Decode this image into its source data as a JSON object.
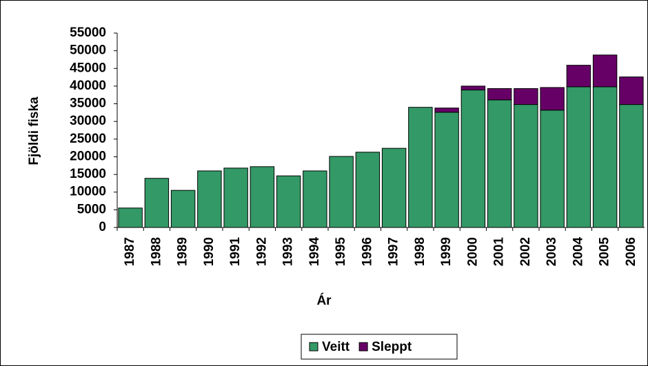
{
  "chart_data": {
    "type": "stacked_bar",
    "x_label": "Ár",
    "y_label": "Fjöldi fiska",
    "categories": [
      "1987",
      "1988",
      "1989",
      "1990",
      "1991",
      "1992",
      "1993",
      "1994",
      "1995",
      "1996",
      "1997",
      "1998",
      "1999",
      "2000",
      "2001",
      "2002",
      "2003",
      "2004",
      "2005",
      "2006"
    ],
    "series": [
      {
        "name": "Veitt",
        "color": "#339966",
        "values": [
          5500,
          13900,
          10500,
          16000,
          16800,
          17200,
          14600,
          16000,
          20100,
          21300,
          22400,
          34000,
          32600,
          38900,
          36100,
          34800,
          33200,
          39800,
          39800,
          34800
        ]
      },
      {
        "name": "Sleppt",
        "color": "#660066",
        "values": [
          0,
          0,
          0,
          0,
          0,
          0,
          0,
          0,
          0,
          0,
          0,
          0,
          1200,
          1100,
          3200,
          4500,
          6400,
          6100,
          9000,
          7800
        ]
      }
    ],
    "ylim": [
      0,
      55000
    ],
    "yticks": [
      0,
      5000,
      10000,
      15000,
      20000,
      25000,
      30000,
      35000,
      40000,
      45000,
      50000,
      55000
    ],
    "legend": "bottom"
  }
}
